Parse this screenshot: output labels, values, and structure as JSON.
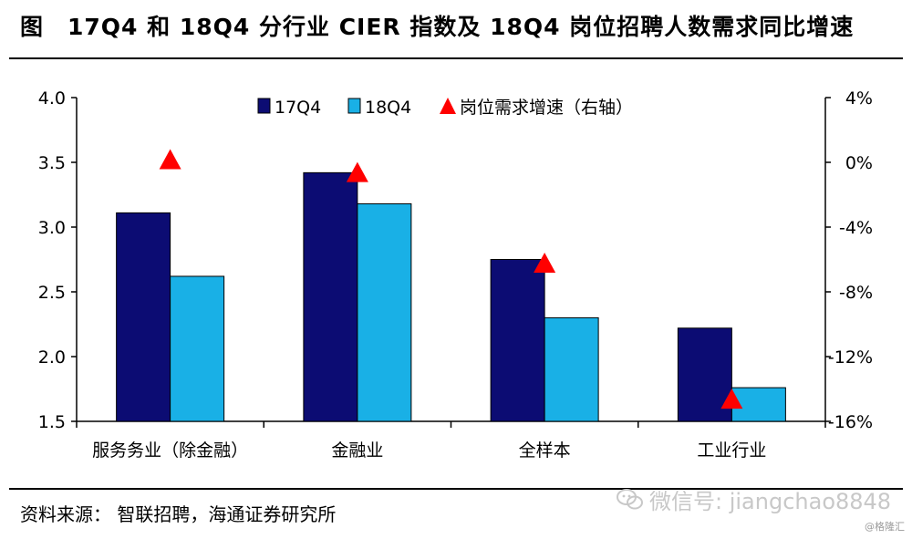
{
  "header": {
    "fig_label": "图",
    "title": "17Q4 和 18Q4 分行业 CIER 指数及 18Q4 岗位招聘人数需求同比增速"
  },
  "footer": {
    "source": "资料来源： 智联招聘，海通证券研究所",
    "watermark": "微信号: jiangchao8848",
    "corner_mark": "@格隆汇"
  },
  "colors": {
    "series_17q4": "#0c0c73",
    "series_18q4": "#19b0e6",
    "triangle": "#ff0000"
  },
  "chart_data": {
    "type": "bar",
    "title": "17Q4 和 18Q4 分行业 CIER 指数及 18Q4 岗位招聘人数需求同比增速",
    "categories": [
      "服务务业（除金融）",
      "金融业",
      "全样本",
      "工业行业"
    ],
    "series": [
      {
        "name": "17Q4",
        "type": "bar",
        "axis": "left",
        "values": [
          3.11,
          3.42,
          2.75,
          2.22
        ]
      },
      {
        "name": "18Q4",
        "type": "bar",
        "axis": "left",
        "values": [
          2.62,
          3.18,
          2.3,
          1.76
        ]
      },
      {
        "name": "岗位需求增速（右轴）",
        "type": "marker",
        "marker": "triangle",
        "axis": "right",
        "values": [
          0.2,
          -0.6,
          -6.2,
          -14.6
        ]
      }
    ],
    "y_left": {
      "min": 1.5,
      "max": 4.0,
      "ticks": [
        "1.5",
        "2.0",
        "2.5",
        "3.0",
        "3.5",
        "4.0"
      ]
    },
    "y_right": {
      "min": -16,
      "max": 4,
      "unit": "%",
      "ticks": [
        "-16%",
        "-12%",
        "-8%",
        "-4%",
        "0%",
        "4%"
      ]
    },
    "grid": false,
    "legend_position": "top"
  }
}
